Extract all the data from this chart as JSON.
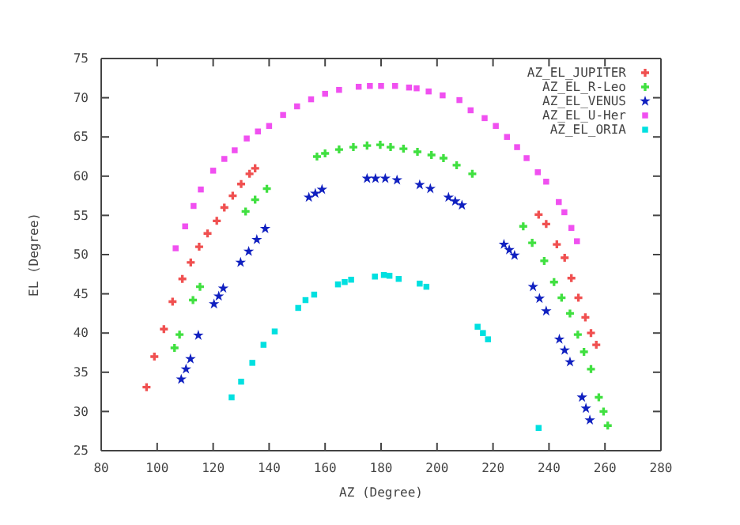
{
  "chart_data": {
    "type": "scatter",
    "xlabel": "AZ (Degree)",
    "ylabel": "EL (Degree)",
    "xlim": [
      80,
      280
    ],
    "ylim": [
      25,
      75
    ],
    "xticks": [
      80,
      100,
      120,
      140,
      160,
      180,
      200,
      220,
      240,
      260,
      280
    ],
    "yticks": [
      25,
      30,
      35,
      40,
      45,
      50,
      55,
      60,
      65,
      70,
      75
    ],
    "grid": false,
    "legend": "top right",
    "series": [
      {
        "name": "AZ_EL_JUPITER",
        "color": "#f05050",
        "marker": "cross",
        "x": [
          96.2,
          99,
          102.4,
          105.5,
          109,
          112,
          115,
          118,
          121.3,
          124,
          127,
          130,
          133,
          135,
          236.3,
          239,
          242.8,
          245.6,
          248,
          250.5,
          253,
          255,
          256.9
        ],
        "values": [
          33.1,
          37,
          40.5,
          44,
          46.9,
          49,
          51,
          52.7,
          54.3,
          56,
          57.5,
          59,
          60.3,
          61,
          55.1,
          53.9,
          51.3,
          49.6,
          47,
          44.5,
          42,
          40,
          38.5
        ]
      },
      {
        "name": "AZ_EL_R-Leo",
        "color": "#40e040",
        "marker": "cross",
        "x": [
          106.2,
          108,
          112.8,
          115.3,
          131.6,
          135,
          139.2,
          157.1,
          160,
          165,
          170.1,
          175,
          179.7,
          183.4,
          188,
          193,
          198,
          202.3,
          207,
          212.6,
          230.8,
          234,
          238.3,
          241.8,
          244.5,
          247.5,
          250.3,
          252.5,
          255,
          257.8,
          259.5,
          261
        ],
        "values": [
          38.1,
          39.8,
          44.2,
          45.9,
          55.5,
          57,
          58.4,
          62.5,
          62.9,
          63.4,
          63.7,
          63.9,
          64.0,
          63.7,
          63.5,
          63.1,
          62.7,
          62.3,
          61.4,
          60.3,
          53.6,
          51.5,
          49.2,
          46.5,
          44.5,
          42.5,
          39.8,
          37.6,
          35.4,
          31.8,
          30,
          28.2
        ]
      },
      {
        "name": "AZ_EL_VENUS",
        "color": "#1020c0",
        "marker": "star",
        "x": [
          108.6,
          110.3,
          111.9,
          114.7,
          120.3,
          122,
          123.6,
          129.8,
          132.7,
          135.6,
          138.6,
          154.2,
          156.5,
          158.9,
          175,
          178,
          181.5,
          185.7,
          193.8,
          197.6,
          204.1,
          206.5,
          208.9,
          223.9,
          225.8,
          227.7,
          234.3,
          236.6,
          239,
          243.7,
          245.6,
          247.5,
          251.8,
          253.2,
          254.6
        ],
        "values": [
          34.1,
          35.4,
          36.7,
          39.7,
          43.7,
          44.7,
          45.7,
          49.0,
          50.4,
          51.9,
          53.3,
          57.3,
          57.8,
          58.3,
          59.7,
          59.7,
          59.7,
          59.5,
          58.9,
          58.4,
          57.3,
          56.8,
          56.3,
          51.3,
          50.6,
          49.9,
          45.9,
          44.4,
          42.8,
          39.2,
          37.8,
          36.3,
          31.8,
          30.4,
          28.9
        ]
      },
      {
        "name": "AZ_EL_U-Her",
        "color": "#f050f0",
        "marker": "square",
        "x": [
          106.6,
          110,
          113,
          115.6,
          120,
          124,
          127.7,
          132,
          136,
          140,
          145,
          150,
          155,
          160,
          165,
          172,
          176,
          180,
          185,
          190,
          192.7,
          197,
          202,
          208,
          212,
          217,
          221,
          225,
          228.6,
          232,
          236,
          239,
          243.5,
          245.5,
          248,
          250
        ],
        "values": [
          50.8,
          53.6,
          56.2,
          58.3,
          60.7,
          62.2,
          63.3,
          64.8,
          65.7,
          66.4,
          67.8,
          68.9,
          69.8,
          70.5,
          71,
          71.4,
          71.5,
          71.5,
          71.5,
          71.3,
          71.2,
          70.8,
          70.3,
          69.7,
          68.4,
          67.4,
          66.4,
          65,
          63.7,
          62.3,
          60.5,
          59.3,
          56.7,
          55.4,
          53.4,
          51.7
        ]
      },
      {
        "name": "AZ_EL_ORIA",
        "color": "#00e0e0",
        "marker": "square",
        "x": [
          126.6,
          130,
          134,
          138,
          142,
          150.4,
          153,
          156.1,
          164.6,
          167,
          169.3,
          177.8,
          181,
          183,
          186.3,
          193.8,
          196.2,
          214.5,
          216.4,
          218.2,
          236.3
        ],
        "values": [
          31.8,
          33.8,
          36.2,
          38.5,
          40.2,
          43.2,
          44.2,
          44.9,
          46.2,
          46.5,
          46.8,
          47.2,
          47.4,
          47.3,
          46.9,
          46.3,
          45.9,
          40.8,
          40.0,
          39.2,
          27.9
        ]
      }
    ]
  }
}
